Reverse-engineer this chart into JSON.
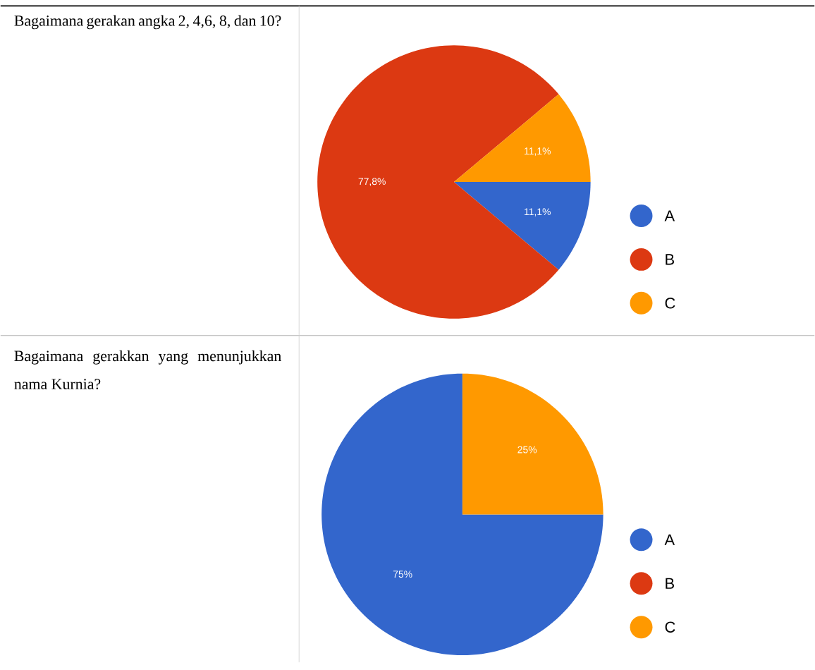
{
  "chart_data": [
    {
      "type": "pie",
      "title": "Bagaimana gerakan angka 2, 4,6, 8, dan 10?",
      "categories": [
        "A",
        "B",
        "C"
      ],
      "values": [
        11.1,
        77.8,
        11.1
      ],
      "colors": [
        "#3366cc",
        "#dc3912",
        "#ff9900"
      ],
      "value_labels": [
        "11,1%",
        "77,8%",
        "11,1%"
      ],
      "legend": "right"
    },
    {
      "type": "pie",
      "title": "Bagaimana gerakkan yang menunjukkan nama Kurnia?",
      "categories": [
        "A",
        "B",
        "C"
      ],
      "values": [
        75,
        0,
        25
      ],
      "colors": [
        "#3366cc",
        "#dc3912",
        "#ff9900"
      ],
      "value_labels": [
        "75%",
        null,
        "25%"
      ],
      "legend": "right"
    }
  ]
}
